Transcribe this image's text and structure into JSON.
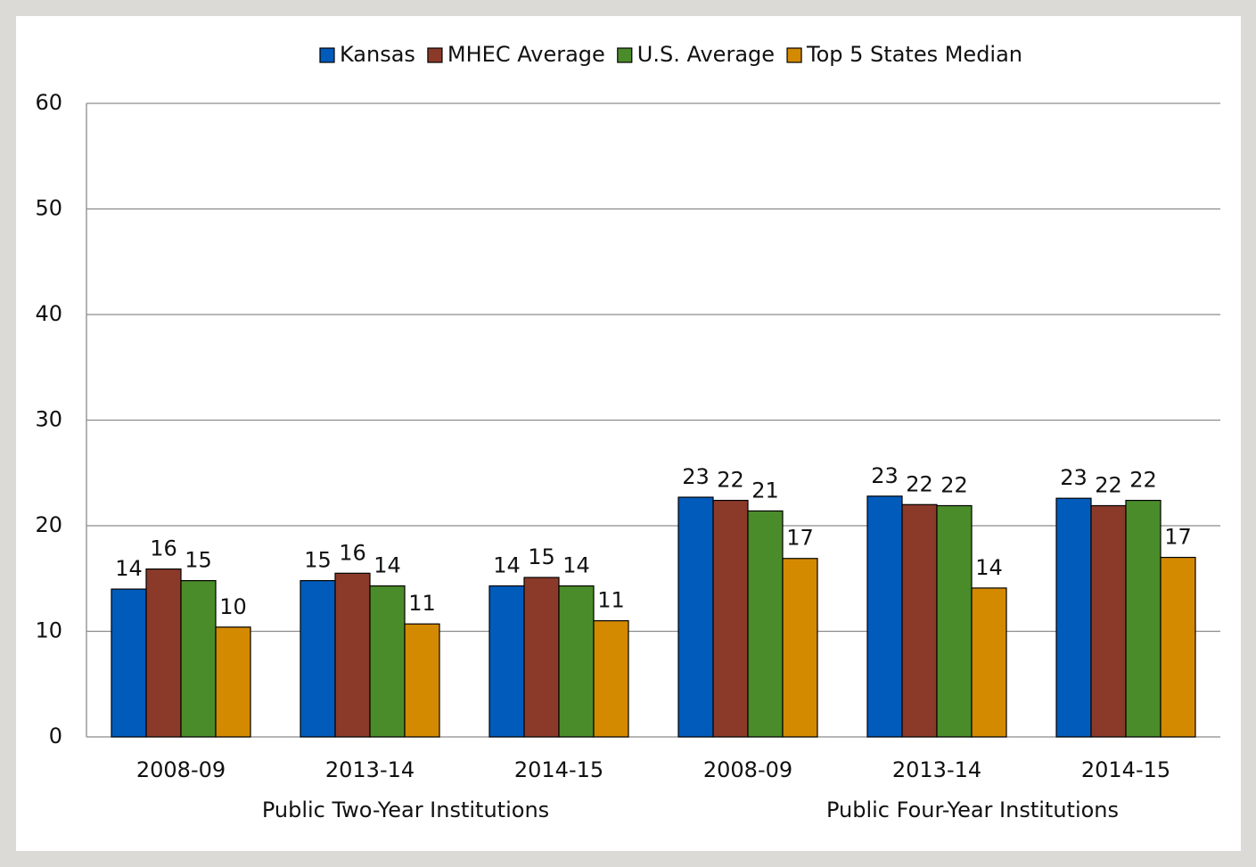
{
  "chart_data": {
    "type": "bar",
    "categories": [
      "2008-09",
      "2013-14",
      "2014-15",
      "2008-09",
      "2013-14",
      "2014-15"
    ],
    "group_labels": [
      "Public Two-Year Institutions",
      "Public Four-Year Institutions"
    ],
    "series": [
      {
        "name": "Kansas",
        "color": "#005bbb",
        "values": [
          14.0,
          14.8,
          14.3,
          22.7,
          22.8,
          22.6
        ],
        "value_labels": [
          "14",
          "15",
          "14",
          "23",
          "23",
          "23"
        ]
      },
      {
        "name": "MHEC Average",
        "color": "#8b3a2a",
        "values": [
          15.9,
          15.5,
          15.1,
          22.4,
          22.0,
          21.9
        ],
        "value_labels": [
          "16",
          "16",
          "15",
          "22",
          "22",
          "22"
        ]
      },
      {
        "name": "U.S. Average",
        "color": "#4a8c2a",
        "values": [
          14.8,
          14.3,
          14.3,
          21.4,
          21.9,
          22.4
        ],
        "value_labels": [
          "15",
          "14",
          "14",
          "21",
          "22",
          "22"
        ]
      },
      {
        "name": "Top 5 States Median",
        "color": "#d48a00",
        "values": [
          10.4,
          10.7,
          11.0,
          16.9,
          14.1,
          17.0
        ],
        "value_labels": [
          "10",
          "11",
          "11",
          "17",
          "14",
          "17"
        ]
      }
    ],
    "ylim": [
      0,
      60
    ],
    "yticks": [
      0,
      10,
      20,
      30,
      40,
      50,
      60
    ],
    "grid": true,
    "legend": "top"
  }
}
